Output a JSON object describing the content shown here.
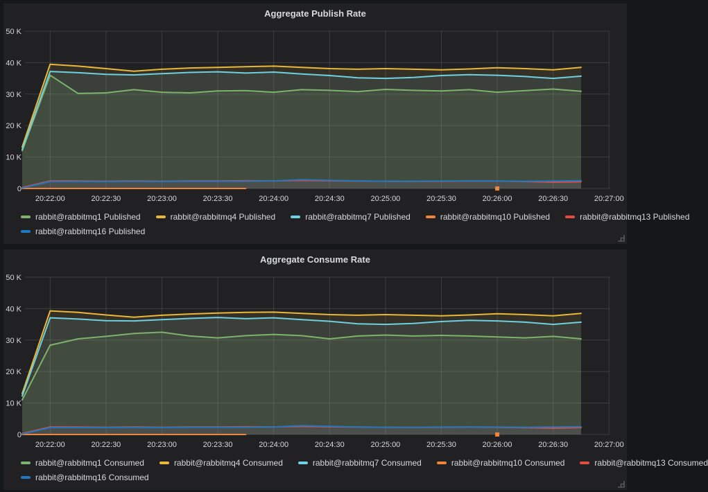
{
  "page": {
    "background": "#161719",
    "panel_background": "#212124",
    "grid_color": "rgba(255,255,255,0.13)",
    "text_color": "#d8d9da"
  },
  "icons": {
    "resize_handle": "panel-resize-handle"
  },
  "chart_data": [
    {
      "type": "line",
      "title": "Aggregate Publish Rate",
      "xlabel": "",
      "ylabel": "",
      "y_unit": "K",
      "ylim_k": [
        0,
        50
      ],
      "y_ticks": [
        "0",
        "10 K",
        "20 K",
        "30 K",
        "40 K",
        "50 K"
      ],
      "x_ticks": [
        "20:22:00",
        "20:22:30",
        "20:23:00",
        "20:23:30",
        "20:24:00",
        "20:24:30",
        "20:25:00",
        "20:25:30",
        "20:26:00",
        "20:26:30",
        "20:27:00"
      ],
      "time_start": "20:21:45",
      "time_step_seconds": 15,
      "grid": true,
      "legend_position": "bottom-left",
      "fill_opacity": 0.1,
      "series": [
        {
          "name": "rabbit@rabbitmq1 Published",
          "color": "#7EB26D",
          "values_k": [
            12.0,
            36.0,
            30.2,
            30.4,
            31.4,
            30.6,
            30.4,
            31.0,
            31.1,
            30.6,
            31.4,
            31.2,
            30.8,
            31.5,
            31.2,
            31.0,
            31.4,
            30.6,
            31.1,
            31.6,
            30.9
          ]
        },
        {
          "name": "rabbit@rabbitmq4 Published",
          "color": "#EAB839",
          "values_k": [
            13.2,
            39.5,
            38.9,
            38.1,
            37.3,
            37.9,
            38.3,
            38.5,
            38.7,
            38.9,
            38.5,
            38.1,
            37.9,
            38.1,
            37.9,
            37.7,
            38.0,
            38.4,
            38.1,
            37.7,
            38.5
          ]
        },
        {
          "name": "rabbit@rabbitmq7 Published",
          "color": "#6ED0E0",
          "values_k": [
            12.4,
            37.2,
            36.8,
            36.3,
            36.1,
            36.5,
            36.9,
            37.1,
            36.7,
            37.0,
            36.4,
            35.9,
            35.2,
            35.0,
            35.3,
            35.9,
            36.2,
            36.0,
            35.6,
            35.0,
            35.7
          ]
        },
        {
          "name": "rabbit@rabbitmq10 Published",
          "color": "#EF843C",
          "values_k": [
            0,
            0,
            0,
            0,
            0,
            0,
            0,
            0,
            0,
            null,
            null,
            null,
            null,
            null,
            null,
            null,
            null,
            0,
            null,
            null,
            null
          ]
        },
        {
          "name": "rabbit@rabbitmq13 Published",
          "color": "#E24D42",
          "values_k": [
            0.3,
            2.4,
            2.35,
            2.3,
            2.4,
            2.3,
            2.4,
            2.4,
            2.45,
            2.4,
            2.55,
            2.45,
            2.35,
            2.3,
            2.25,
            2.3,
            2.35,
            2.35,
            2.2,
            2.0,
            2.15
          ]
        },
        {
          "name": "rabbit@rabbitmq16 Published",
          "color": "#1F78C1",
          "values_k": [
            0.15,
            2.2,
            2.2,
            2.2,
            2.25,
            2.2,
            2.3,
            2.3,
            2.3,
            2.4,
            2.8,
            2.6,
            2.4,
            2.3,
            2.3,
            2.35,
            2.4,
            2.35,
            2.3,
            2.35,
            2.5
          ]
        }
      ]
    },
    {
      "type": "line",
      "title": "Aggregate Consume Rate",
      "xlabel": "",
      "ylabel": "",
      "y_unit": "K",
      "ylim_k": [
        0,
        50
      ],
      "y_ticks": [
        "0",
        "10 K",
        "20 K",
        "30 K",
        "40 K",
        "50 K"
      ],
      "x_ticks": [
        "20:22:00",
        "20:22:30",
        "20:23:00",
        "20:23:30",
        "20:24:00",
        "20:24:30",
        "20:25:00",
        "20:25:30",
        "20:26:00",
        "20:26:30",
        "20:27:00"
      ],
      "time_start": "20:21:45",
      "time_step_seconds": 15,
      "grid": true,
      "legend_position": "bottom-left",
      "fill_opacity": 0.1,
      "series": [
        {
          "name": "rabbit@rabbitmq1 Consumed",
          "color": "#7EB26D",
          "values_k": [
            11.0,
            28.4,
            30.4,
            31.2,
            32.1,
            32.5,
            31.3,
            30.7,
            31.4,
            31.8,
            31.4,
            30.4,
            31.3,
            31.6,
            31.3,
            31.5,
            31.3,
            31.0,
            30.7,
            31.2,
            30.4
          ]
        },
        {
          "name": "rabbit@rabbitmq4 Consumed",
          "color": "#EAB839",
          "values_k": [
            13.0,
            39.3,
            38.8,
            38.0,
            37.3,
            37.9,
            38.3,
            38.6,
            38.8,
            38.9,
            38.5,
            38.1,
            37.9,
            38.1,
            37.9,
            37.7,
            38.0,
            38.4,
            38.1,
            37.7,
            38.5
          ]
        },
        {
          "name": "rabbit@rabbitmq7 Consumed",
          "color": "#6ED0E0",
          "values_k": [
            12.2,
            37.1,
            36.7,
            36.2,
            36.1,
            36.5,
            36.9,
            37.2,
            36.8,
            37.1,
            36.5,
            36.0,
            35.2,
            35.0,
            35.3,
            35.9,
            36.3,
            36.1,
            35.7,
            35.0,
            35.7
          ]
        },
        {
          "name": "rabbit@rabbitmq10 Consumed",
          "color": "#EF843C",
          "values_k": [
            0,
            0,
            0,
            0,
            0,
            0,
            0,
            0,
            0,
            null,
            null,
            null,
            null,
            null,
            null,
            null,
            null,
            0,
            null,
            null,
            null
          ]
        },
        {
          "name": "rabbit@rabbitmq13 Consumed",
          "color": "#E24D42",
          "values_k": [
            0.3,
            2.4,
            2.35,
            2.3,
            2.4,
            2.3,
            2.4,
            2.4,
            2.45,
            2.4,
            2.55,
            2.45,
            2.35,
            2.3,
            2.25,
            2.3,
            2.35,
            2.3,
            2.15,
            2.0,
            2.2
          ]
        },
        {
          "name": "rabbit@rabbitmq16 Consumed",
          "color": "#1F78C1",
          "values_k": [
            0.15,
            2.2,
            2.2,
            2.2,
            2.25,
            2.2,
            2.3,
            2.3,
            2.3,
            2.4,
            2.8,
            2.6,
            2.4,
            2.3,
            2.3,
            2.35,
            2.4,
            2.35,
            2.3,
            2.4,
            2.5
          ]
        }
      ]
    }
  ]
}
